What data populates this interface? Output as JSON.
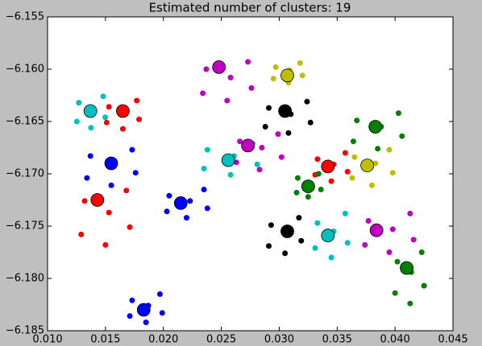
{
  "chart_data": {
    "type": "scatter",
    "title": "Estimated number of clusters: 19",
    "xlim": [
      0.01,
      0.045
    ],
    "xticks": [
      {
        "value": 0.01,
        "label": "0.010"
      },
      {
        "value": 0.015,
        "label": "0.015"
      },
      {
        "value": 0.02,
        "label": "0.020"
      },
      {
        "value": 0.025,
        "label": "0.025"
      },
      {
        "value": 0.03,
        "label": "0.030"
      },
      {
        "value": 0.035,
        "label": "0.035"
      },
      {
        "value": 0.04,
        "label": "0.040"
      },
      {
        "value": 0.045,
        "label": "0.045"
      }
    ],
    "ylim": [
      -6.185,
      -6.155
    ],
    "yticks": [
      {
        "value": -6.185,
        "label": "−6.185"
      },
      {
        "value": -6.18,
        "label": "−6.180"
      },
      {
        "value": -6.175,
        "label": "−6.175"
      },
      {
        "value": -6.17,
        "label": "−6.170"
      },
      {
        "value": -6.165,
        "label": "−6.165"
      },
      {
        "value": -6.16,
        "label": "−6.160"
      },
      {
        "value": -6.155,
        "label": "−6.155"
      }
    ],
    "grid": false,
    "series": [
      {
        "color": "#00bfbf",
        "x": [
          0.01253,
          0.01375,
          0.01498,
          0.0127,
          0.01393,
          0.0148
        ],
        "values": [
          -6.165,
          -6.1656,
          -6.1646,
          -6.1632,
          -6.1638,
          -6.1626
        ],
        "center_x": 0.0137,
        "center_y": -6.164
      },
      {
        "color": "#ff0000",
        "x": [
          0.0151,
          0.0165,
          0.0179,
          0.0153,
          0.0167,
          0.0177
        ],
        "values": [
          -6.1651,
          -6.1657,
          -6.1648,
          -6.1636,
          -6.1641,
          -6.163
        ],
        "center_x": 0.0165,
        "center_y": -6.164
      },
      {
        "color": "#0000ff",
        "x": [
          0.0134,
          0.0155,
          0.0176,
          0.0137,
          0.0158,
          0.0173
        ],
        "values": [
          -6.1704,
          -6.1711,
          -6.1699,
          -6.1683,
          -6.169,
          -6.1677
        ],
        "center_x": 0.0155,
        "center_y": -6.169
      },
      {
        "color": "#ff0000",
        "x": [
          0.0129,
          0.015,
          0.0171,
          0.0132,
          0.0153,
          0.0168
        ],
        "values": [
          -6.1758,
          -6.1768,
          -6.1751,
          -6.1726,
          -6.1737,
          -6.1716
        ],
        "center_x": 0.0143,
        "center_y": -6.1725
      },
      {
        "color": "#0000ff",
        "x": [
          0.0171,
          0.0185,
          0.0199,
          0.0173,
          0.0187,
          0.0197
        ],
        "values": [
          -6.1836,
          -6.1842,
          -6.1833,
          -6.1821,
          -6.1826,
          -6.1815
        ],
        "center_x": 0.0183,
        "center_y": -6.183
      },
      {
        "color": "#bf00bf",
        "x": [
          0.0234,
          0.0255,
          0.0276,
          0.0237,
          0.0258,
          0.0273
        ],
        "values": [
          -6.1623,
          -6.163,
          -6.1618,
          -6.16,
          -6.1608,
          -6.1593
        ],
        "center_x": 0.0248,
        "center_y": -6.1598
      },
      {
        "color": "#bfbf00",
        "x": [
          0.0295,
          0.0308,
          0.032,
          0.0297,
          0.0309,
          0.0318
        ],
        "values": [
          -6.1609,
          -6.1613,
          -6.1606,
          -6.1598,
          -6.1601,
          -6.1594
        ],
        "center_x": 0.0307,
        "center_y": -6.1606
      },
      {
        "color": "#000000",
        "x": [
          0.0288,
          0.0308,
          0.0327,
          0.0291,
          0.031,
          0.0324
        ],
        "values": [
          -6.1655,
          -6.1661,
          -6.1651,
          -6.1637,
          -6.1643,
          -6.1631
        ],
        "center_x": 0.0305,
        "center_y": -6.164
      },
      {
        "color": "#bf00bf",
        "x": [
          0.0263,
          0.0283,
          0.0302,
          0.0266,
          0.0285,
          0.0299
        ],
        "values": [
          -6.1689,
          -6.1696,
          -6.1684,
          -6.1669,
          -6.1675,
          -6.1662
        ],
        "center_x": 0.0273,
        "center_y": -6.1673
      },
      {
        "color": "#00bfbf",
        "x": [
          0.0235,
          0.0258,
          0.0281,
          0.0238,
          0.0261,
          0.0277
        ],
        "values": [
          -6.1695,
          -6.1701,
          -6.1691,
          -6.1677,
          -6.1683,
          -6.1671
        ],
        "center_x": 0.0256,
        "center_y": -6.1687
      },
      {
        "color": "#0000ff",
        "x": [
          0.0203,
          0.022,
          0.0238,
          0.0205,
          0.0223,
          0.0235
        ],
        "values": [
          -6.1736,
          -6.1742,
          -6.1733,
          -6.1721,
          -6.1726,
          -6.1715
        ],
        "center_x": 0.0215,
        "center_y": -6.1728
      },
      {
        "color": "#ff0000",
        "x": [
          0.0331,
          0.0345,
          0.0359,
          0.0333,
          0.0347,
          0.0357
        ],
        "values": [
          -6.1701,
          -6.1707,
          -6.1698,
          -6.1686,
          -6.1691,
          -6.168
        ],
        "center_x": 0.0342,
        "center_y": -6.1693
      },
      {
        "color": "#008000",
        "x": [
          0.0315,
          0.0325,
          0.0336,
          0.0316,
          0.0327,
          0.0334
        ],
        "values": [
          -6.1718,
          -6.1722,
          -6.1715,
          -6.1704,
          -6.1709,
          -6.17
        ],
        "center_x": 0.0325,
        "center_y": -6.1712
      },
      {
        "color": "#000000",
        "x": [
          0.0291,
          0.0305,
          0.0319,
          0.0293,
          0.0307,
          0.0317
        ],
        "values": [
          -6.1769,
          -6.1776,
          -6.1764,
          -6.1749,
          -6.1755,
          -6.1742
        ],
        "center_x": 0.0307,
        "center_y": -6.1755
      },
      {
        "color": "#00bfbf",
        "x": [
          0.0331,
          0.0345,
          0.0359,
          0.0333,
          0.0347,
          0.0357
        ],
        "values": [
          -6.1771,
          -6.178,
          -6.1766,
          -6.1747,
          -6.1755,
          -6.1738
        ],
        "center_x": 0.0342,
        "center_y": -6.1759
      },
      {
        "color": "#008000",
        "x": [
          0.0364,
          0.0385,
          0.0406,
          0.0367,
          0.0388,
          0.0403
        ],
        "values": [
          -6.1669,
          -6.1676,
          -6.1664,
          -6.1649,
          -6.1655,
          -6.1642
        ],
        "center_x": 0.0383,
        "center_y": -6.1655
      },
      {
        "color": "#bfbf00",
        "x": [
          0.0363,
          0.038,
          0.0398,
          0.0365,
          0.0383,
          0.0395
        ],
        "values": [
          -6.1704,
          -6.1711,
          -6.1699,
          -6.1684,
          -6.169,
          -6.1677
        ],
        "center_x": 0.0376,
        "center_y": -6.1692
      },
      {
        "color": "#bf00bf",
        "x": [
          0.0374,
          0.0395,
          0.0416,
          0.0377,
          0.0398,
          0.0413
        ],
        "values": [
          -6.1768,
          -6.1775,
          -6.1763,
          -6.1745,
          -6.1753,
          -6.1738
        ],
        "center_x": 0.0384,
        "center_y": -6.1754
      },
      {
        "color": "#008000",
        "x": [
          0.04,
          0.0413,
          0.0425,
          0.0402,
          0.0414,
          0.0423
        ],
        "values": [
          -6.1814,
          -6.1824,
          -6.1807,
          -6.1784,
          -6.1794,
          -6.1775
        ],
        "center_x": 0.041,
        "center_y": -6.179
      }
    ]
  }
}
